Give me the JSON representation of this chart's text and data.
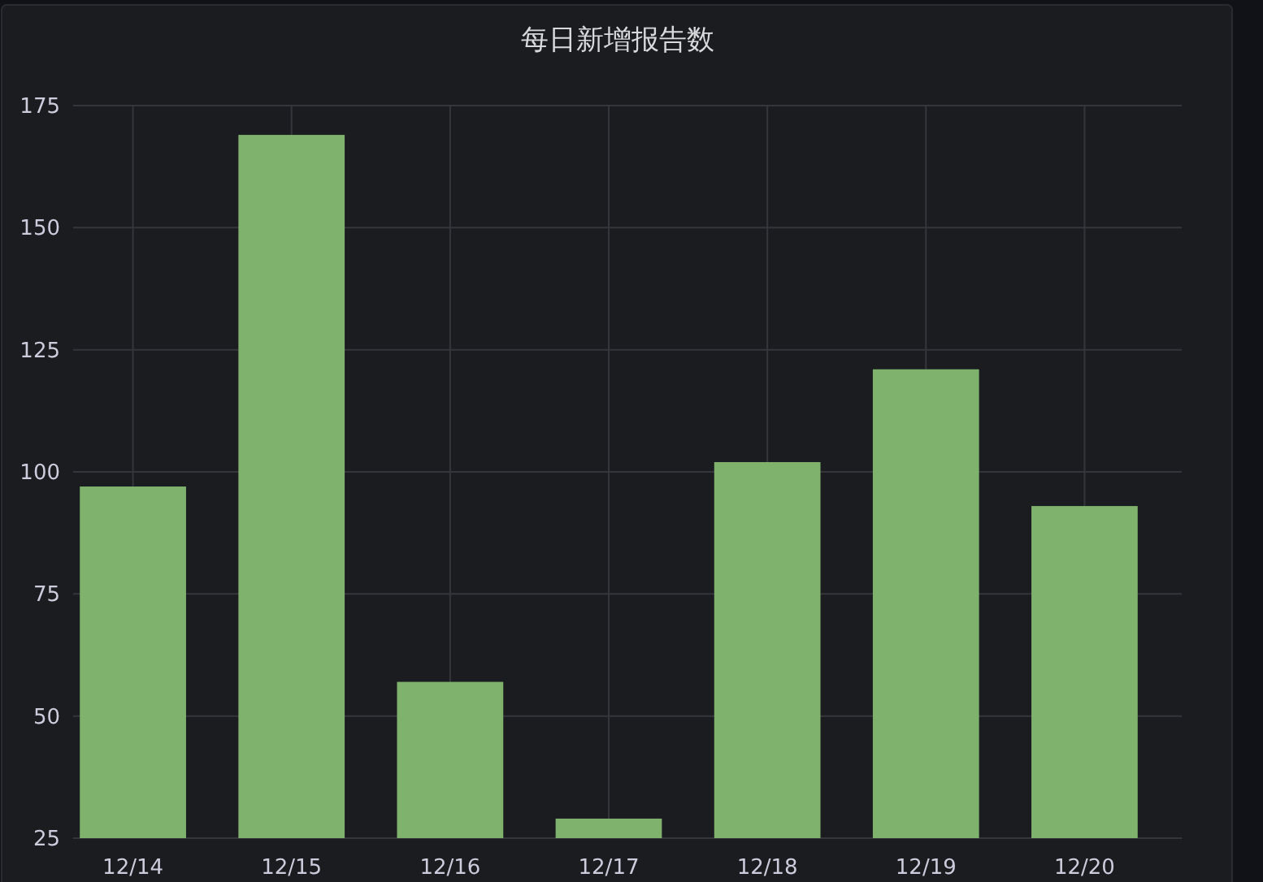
{
  "chart_data": {
    "type": "bar",
    "title": "每日新增报告数",
    "categories": [
      "12/14",
      "12/15",
      "12/16",
      "12/17",
      "12/18",
      "12/19",
      "12/20"
    ],
    "values": [
      97,
      169,
      57,
      29,
      102,
      121,
      93
    ],
    "color": "#7eb26d",
    "ylim": [
      25,
      175
    ],
    "yticks": [
      25,
      50,
      75,
      100,
      125,
      150,
      175
    ],
    "grid": true
  }
}
